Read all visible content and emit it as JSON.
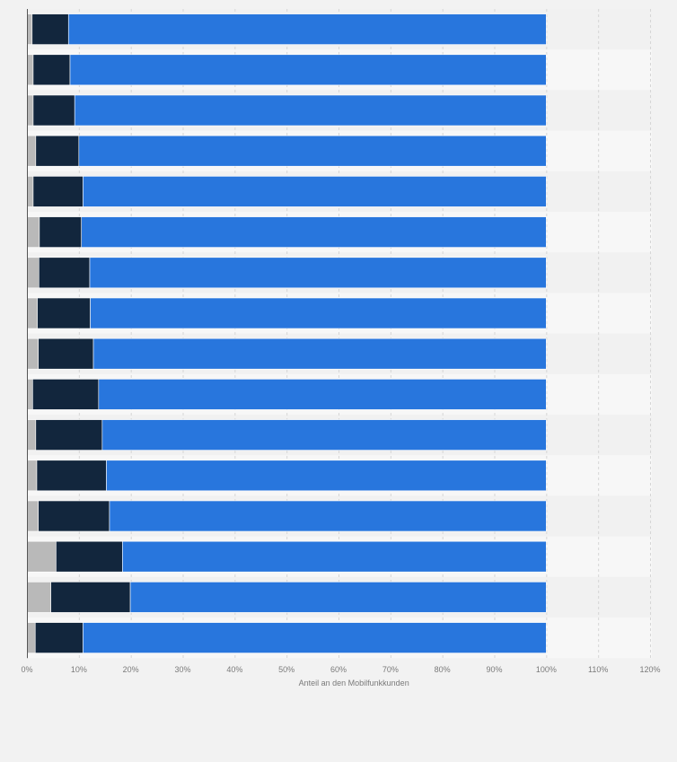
{
  "chart_data": {
    "type": "bar",
    "orientation": "horizontal",
    "stacked": true,
    "xlabel": "Anteil an den Mobilfunkkunden",
    "ylabel": "",
    "xlim": [
      0,
      120
    ],
    "x_ticks": [
      0,
      10,
      20,
      30,
      40,
      50,
      60,
      70,
      80,
      90,
      100,
      110,
      120
    ],
    "x_tick_labels": [
      "0%",
      "10%",
      "20%",
      "30%",
      "40%",
      "50%",
      "60%",
      "70%",
      "80%",
      "90%",
      "100%",
      "110%",
      "120%"
    ],
    "grid": true,
    "legend": "none",
    "categories": [
      "",
      "",
      "",
      "",
      "",
      "",
      "",
      "",
      "",
      "",
      "",
      "",
      "",
      "",
      "",
      ""
    ],
    "colors": [
      "#b9b9b9",
      "#12263d",
      "#2876dd"
    ],
    "series": [
      {
        "values": [
          1,
          1.2,
          1.2,
          1.7,
          1.2,
          2.4,
          2.3,
          2,
          2.2,
          1.1,
          1.7,
          1.9,
          2.2,
          5.6,
          4.6,
          1.6
        ]
      },
      {
        "values": [
          7,
          7.1,
          8,
          8.3,
          9.6,
          8.1,
          9.8,
          10.2,
          10.6,
          12.7,
          12.8,
          13.4,
          13.7,
          12.8,
          15.3,
          9.2
        ]
      },
      {
        "values": [
          92,
          91.7,
          90.8,
          90,
          89.2,
          89.5,
          87.9,
          87.8,
          87.2,
          86.2,
          85.5,
          84.7,
          84.1,
          81.6,
          80.1,
          89.2
        ]
      }
    ]
  }
}
